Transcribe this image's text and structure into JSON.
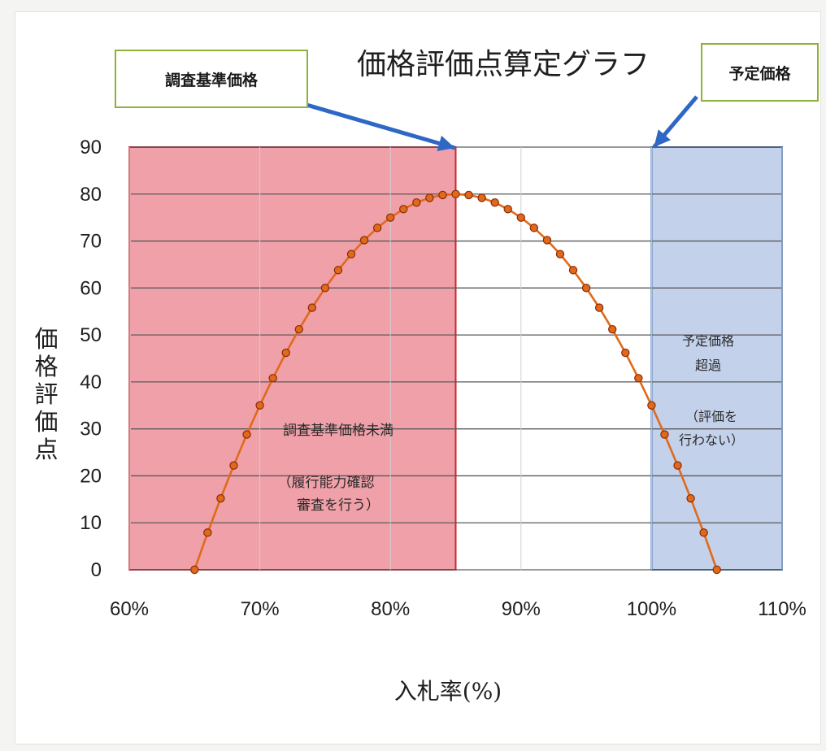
{
  "chart_data": {
    "type": "line",
    "title": "価格評価点算定グラフ",
    "xlabel": "入札率(%)",
    "ylabel": "価格評価点",
    "xlim": [
      60,
      110
    ],
    "ylim": [
      0,
      90
    ],
    "x_ticks": [
      60,
      70,
      80,
      90,
      100,
      110
    ],
    "y_ticks": [
      0,
      10,
      20,
      30,
      40,
      50,
      60,
      70,
      80,
      90
    ],
    "x_tick_labels": [
      "60%",
      "70%",
      "80%",
      "90%",
      "100%",
      "110%"
    ],
    "y_tick_labels": [
      "0",
      "10",
      "20",
      "30",
      "40",
      "50",
      "60",
      "70",
      "80",
      "90"
    ],
    "grid": "horizontal and vertical",
    "series": [
      {
        "color": "#e06a1a",
        "x": [
          65,
          66,
          67,
          68,
          69,
          70,
          71,
          72,
          73,
          74,
          75,
          76,
          77,
          78,
          79,
          80,
          81,
          82,
          83,
          84,
          85,
          86,
          87,
          88,
          89,
          90,
          91,
          92,
          93,
          94,
          95,
          96,
          97,
          98,
          99,
          100,
          101,
          102,
          103,
          104,
          105
        ],
        "y": [
          0,
          7.9,
          15.2,
          22.2,
          28.8,
          35,
          40.8,
          46.2,
          51.2,
          55.8,
          60,
          63.8,
          67.2,
          70.2,
          72.8,
          75,
          76.8,
          78.2,
          79.2,
          79.8,
          80,
          79.8,
          79.2,
          78.2,
          76.8,
          75,
          72.8,
          70.2,
          67.2,
          63.8,
          60,
          55.8,
          51.2,
          46.2,
          40.8,
          35,
          28.8,
          22.2,
          15.2,
          7.9,
          0
        ]
      }
    ],
    "regions": [
      {
        "x_range": [
          60,
          85
        ],
        "color": "#f0a0a8",
        "border": "#c8292f",
        "label": "調査基準価格未満",
        "note": [
          "（履行能力確認",
          "審査を行う）"
        ]
      },
      {
        "x_range": [
          100,
          110
        ],
        "color": "#c3d1ea",
        "border": "#3a6db0",
        "label": [
          "予定価格",
          "超過"
        ],
        "note": [
          "（評価を",
          "行わない）"
        ]
      }
    ],
    "annotations": [
      {
        "text": "調査基準価格",
        "x": 85,
        "y": 90,
        "arrow_color": "#2f67c4"
      },
      {
        "text": "予定価格",
        "x": 100,
        "y": 90,
        "arrow_color": "#2f67c4"
      }
    ]
  }
}
